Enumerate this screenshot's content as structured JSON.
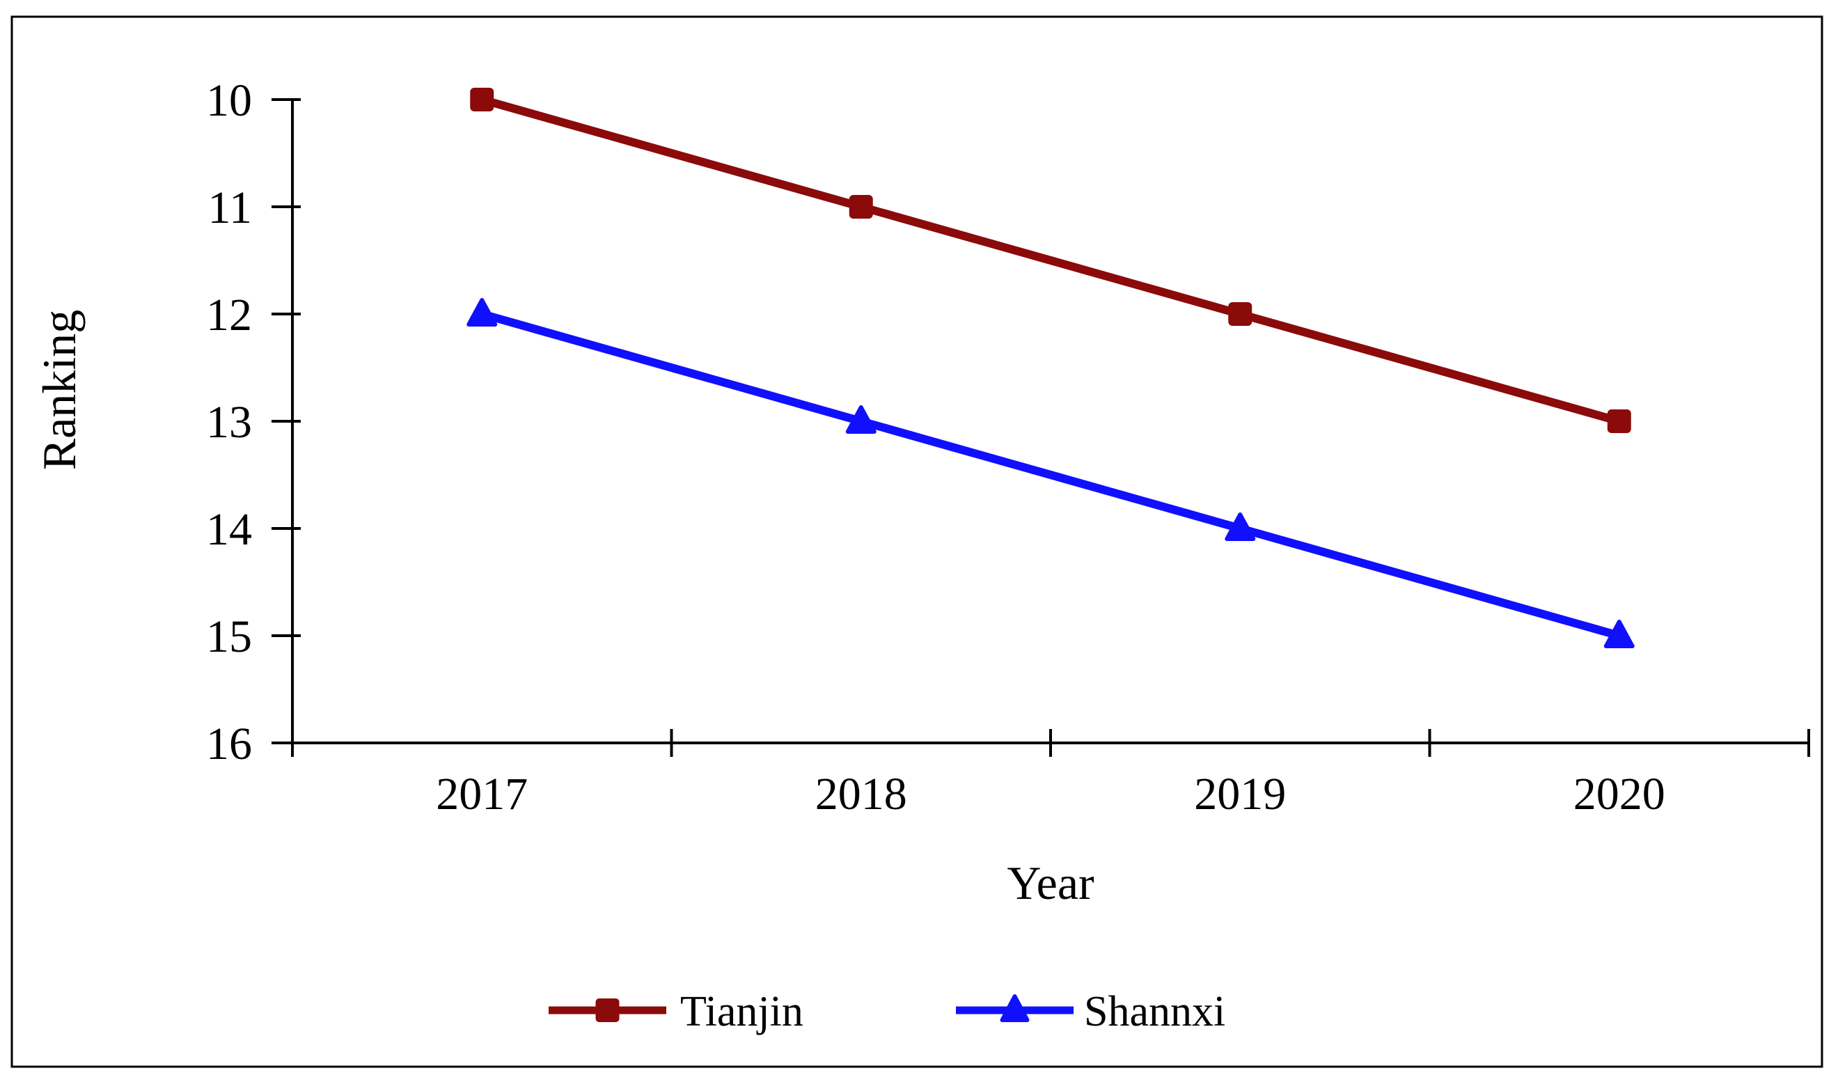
{
  "chart_data": {
    "type": "line",
    "title": "",
    "categories": [
      "2017",
      "2018",
      "2019",
      "2020"
    ],
    "series": [
      {
        "name": "Tianjin",
        "values": [
          10,
          11,
          12,
          13
        ],
        "color": "#8B0A0A",
        "marker": "square"
      },
      {
        "name": "Shannxi",
        "values": [
          12,
          13,
          14,
          15
        ],
        "color": "#1010FF",
        "marker": "triangle"
      }
    ],
    "xlabel": "Year",
    "ylabel": "Ranking",
    "y_axis": {
      "min": 10,
      "max": 16,
      "ticks": [
        10,
        11,
        12,
        13,
        14,
        15,
        16
      ],
      "inverted": true
    },
    "x_axis": {
      "tick_style": "cross",
      "category_boundaries": true
    },
    "grid": false,
    "legend_position": "bottom",
    "axis_color": "#000000",
    "frame_color": "#000000",
    "background": "#FFFFFF"
  }
}
